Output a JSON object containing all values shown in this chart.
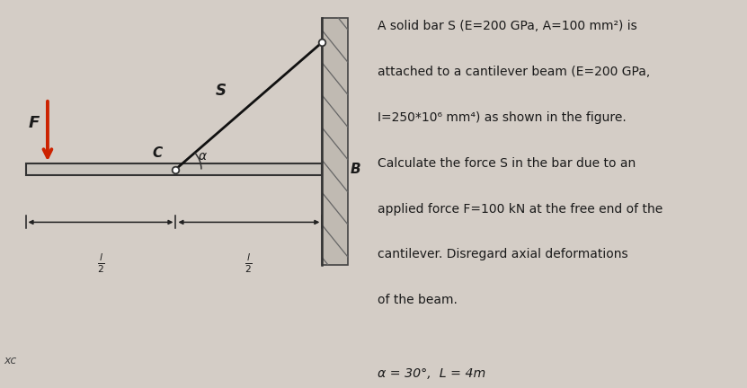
{
  "bg_color": "#d4cdc6",
  "text_color": "#1a1a1a",
  "title_lines": [
    "A solid bar S (E=200 GPa, A=100 mm²) is",
    "attached to a cantilever beam (E=200 GPa,",
    "I=250*10⁶ mm⁴) as shown in the figure.",
    "Calculate the force S in the bar due to an",
    "applied force F=100 kN at the free end of the",
    "cantilever. Disregard axial deformations",
    "of the beam."
  ],
  "params_line": "α = 30°,  L = 4m",
  "label_F": "F",
  "label_S": "S",
  "label_C": "C",
  "label_B": "B",
  "label_alpha": "α",
  "label_xc": "xc",
  "wall_hatch_color": "#888888",
  "beam_color": "#c8c3bc",
  "bar_color": "#111111",
  "arrow_color": "#cc2200"
}
